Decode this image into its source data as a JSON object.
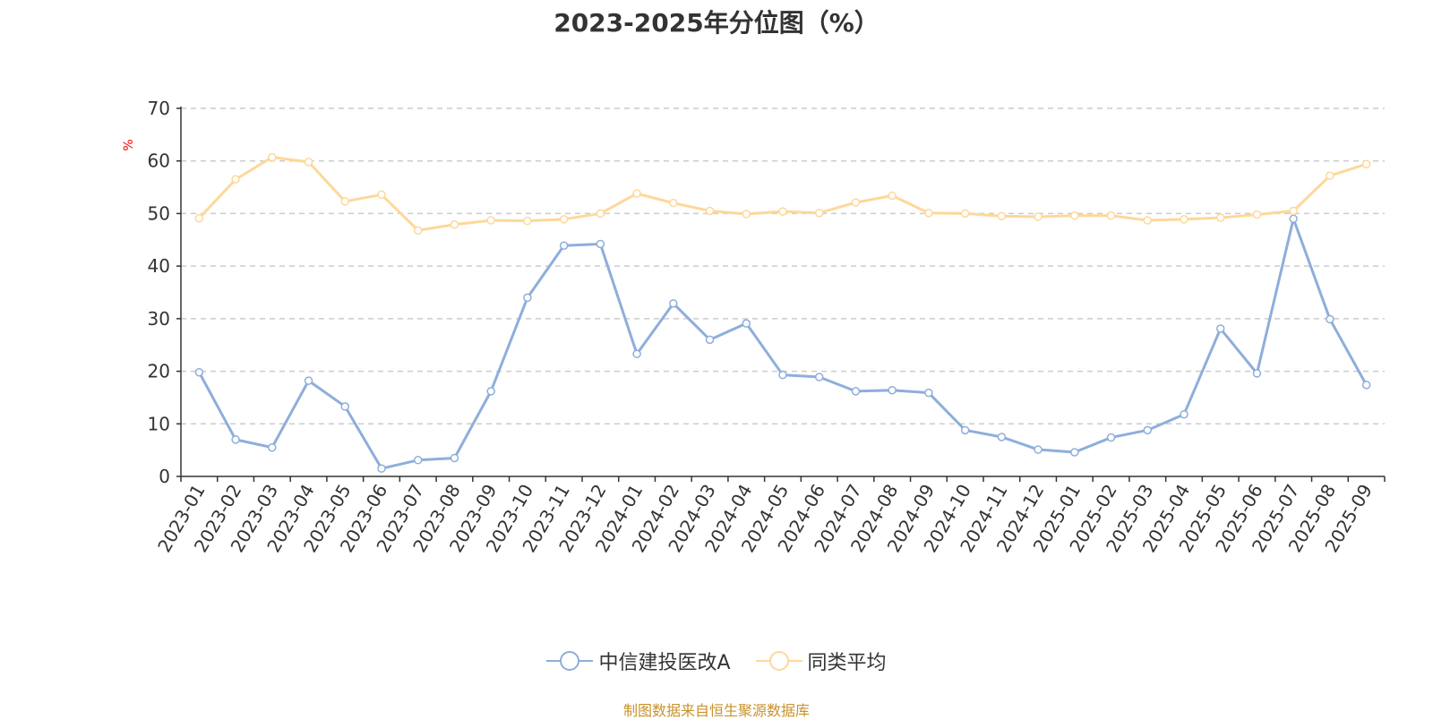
{
  "title": "2023-2025年分位图（%）",
  "source_note": "制图数据来自恒生聚源数据库",
  "chart_data": {
    "type": "line",
    "title": "2023-2025年分位图（%）",
    "ylabel": "%",
    "xlabel": "",
    "ylim": [
      0,
      70
    ],
    "yticks": [
      0,
      10,
      20,
      30,
      40,
      50,
      60,
      70
    ],
    "grid": "horizontal dashed",
    "legend_position": "bottom",
    "categories": [
      "2023-01",
      "2023-02",
      "2023-03",
      "2023-04",
      "2023-05",
      "2023-06",
      "2023-07",
      "2023-08",
      "2023-09",
      "2023-10",
      "2023-11",
      "2023-12",
      "2024-01",
      "2024-02",
      "2024-03",
      "2024-04",
      "2024-05",
      "2024-06",
      "2024-07",
      "2024-08",
      "2024-09",
      "2024-10",
      "2024-11",
      "2024-12",
      "2025-01",
      "2025-02",
      "2025-03",
      "2025-04",
      "2025-05",
      "2025-06",
      "2025-07",
      "2025-08",
      "2025-09"
    ],
    "series": [
      {
        "name": "中信建投医改A",
        "color": "#8eaedb",
        "values": [
          19.8,
          7.0,
          5.5,
          18.2,
          13.3,
          1.5,
          3.1,
          3.5,
          16.2,
          34.0,
          43.9,
          44.2,
          23.3,
          32.9,
          26.0,
          29.1,
          19.3,
          18.9,
          16.2,
          16.4,
          15.9,
          8.8,
          7.5,
          5.1,
          4.6,
          7.4,
          8.8,
          11.8,
          28.1,
          19.6,
          49.0,
          29.9,
          17.4
        ]
      },
      {
        "name": "同类平均",
        "color": "#fdd89a",
        "values": [
          49.1,
          56.5,
          60.7,
          59.8,
          52.3,
          53.6,
          46.8,
          47.9,
          48.7,
          48.6,
          48.9,
          50.0,
          53.8,
          52.0,
          50.5,
          49.9,
          50.4,
          50.1,
          52.1,
          53.4,
          50.1,
          50.0,
          49.5,
          49.4,
          49.6,
          49.6,
          48.7,
          48.9,
          49.2,
          49.8,
          50.5,
          57.2,
          59.4
        ]
      }
    ]
  }
}
